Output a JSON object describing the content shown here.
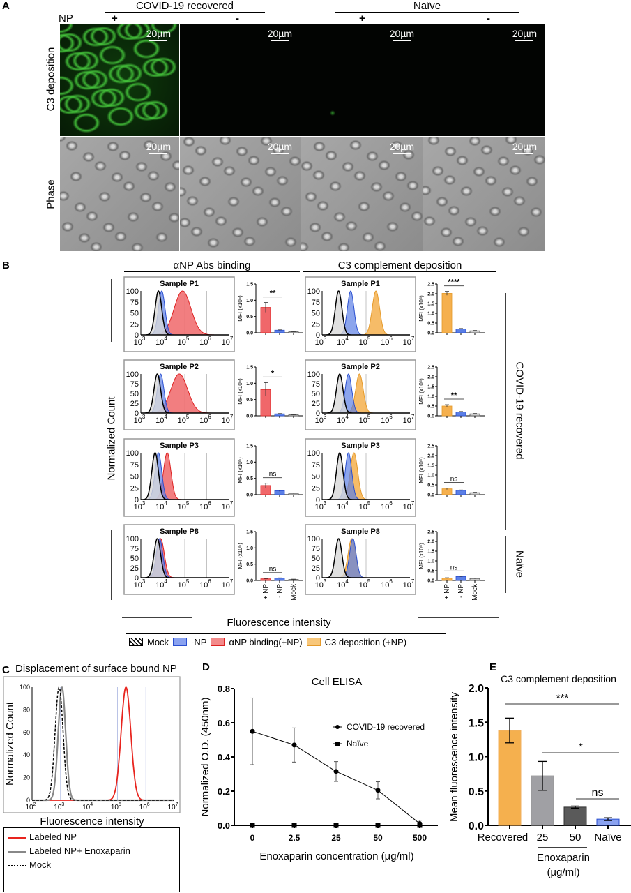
{
  "panel_a": {
    "label": "A",
    "group_headers": [
      "COVID-19 recovered",
      "Naïve"
    ],
    "np_label": "NP",
    "np_states": [
      "+",
      "-",
      "+",
      "-"
    ],
    "row_labels": [
      "C3 deposition",
      "Phase"
    ],
    "scale_bar": "20µm",
    "fluorescence_color": "#3fbf3a"
  },
  "panel_b": {
    "label": "B",
    "headers": [
      "αNP Abs binding",
      "C3 complement deposition"
    ],
    "y_label": "Normalized Count",
    "x_label": "Fluorescence intensity",
    "side_labels": [
      "COVID-19 recovered",
      "Naïve"
    ],
    "legend": [
      "Mock",
      "-NP",
      "αNP binding(+NP)",
      "C3 deposition (+NP)"
    ]
  },
  "panel_c": {
    "label": "C",
    "title": "Displacement of surface bound NP"
  },
  "panel_d": {
    "label": "D"
  },
  "panel_e": {
    "label": "E"
  },
  "colors": {
    "np_pos_binding": "#f0676a",
    "np_neg": "#5b7fe6",
    "c3_pos": "#f5b04e",
    "mock": "#d8d8d8",
    "labeled_np": "#e8241e",
    "enoxaparin": "#888888",
    "enox25": "#a0a0a4",
    "enox50": "#5a5a5a"
  },
  "chart_data": [
    {
      "type": "area",
      "group": "αNP Abs binding",
      "description_kind": "flow cytometry histograms",
      "x_scale": "log",
      "xlim_log10": [
        3,
        7
      ],
      "ylim": [
        0,
        100
      ],
      "x_tick_exponents": [
        "3",
        "4",
        "5",
        "6",
        "7"
      ],
      "x_tick_base": "10",
      "y_ticks": [
        "100",
        "75",
        "50",
        "25",
        "0"
      ],
      "samples": [
        {
          "title": "Sample P1",
          "peaks_log10": {
            "Mock": 3.8,
            "-NP": 3.95,
            "+NP": 4.9
          }
        },
        {
          "title": "Sample P2",
          "peaks_log10": {
            "Mock": 3.75,
            "-NP": 3.9,
            "+NP": 4.75
          }
        },
        {
          "title": "Sample P3",
          "peaks_log10": {
            "Mock": 3.65,
            "-NP": 3.8,
            "+NP": 4.2
          }
        },
        {
          "title": "Sample P8",
          "peaks_log10": {
            "Mock": 3.75,
            "-NP": 3.85,
            "+NP": 3.9
          }
        }
      ]
    },
    {
      "type": "area",
      "group": "C3 complement deposition",
      "x_scale": "log",
      "xlim_log10": [
        3,
        7
      ],
      "ylim": [
        0,
        100
      ],
      "x_tick_exponents": [
        "3",
        "4",
        "5",
        "6",
        "7"
      ],
      "x_tick_base": "10",
      "y_ticks": [
        "100",
        "75",
        "50",
        "25",
        "0"
      ],
      "samples": [
        {
          "title": "Sample P1",
          "peaks_log10": {
            "Mock": 3.75,
            "-NP": 4.3,
            "+NP": 5.45
          }
        },
        {
          "title": "Sample P2",
          "peaks_log10": {
            "Mock": 3.8,
            "-NP": 4.2,
            "+NP": 4.7
          }
        },
        {
          "title": "Sample P3",
          "peaks_log10": {
            "Mock": 3.8,
            "-NP": 4.2,
            "+NP": 4.45
          }
        },
        {
          "title": "Sample P8",
          "peaks_log10": {
            "Mock": 3.75,
            "-NP": 4.4,
            "+NP": 4.35
          }
        }
      ]
    },
    {
      "type": "bar",
      "group": "αNP Abs binding MFI",
      "ylabel": "MFI (x10⁵)",
      "categories": [
        "+ NP",
        "- NP",
        "Mock"
      ],
      "ylim": [
        0,
        1.5
      ],
      "y_ticks": [
        "1.5",
        "1.0",
        "0.5",
        "0.0"
      ],
      "samples": [
        {
          "values": [
            0.78,
            0.08,
            0.03
          ],
          "errors": [
            0.15,
            0.01,
            0.01
          ],
          "significance": "**"
        },
        {
          "values": [
            0.81,
            0.06,
            0.03
          ],
          "errors": [
            0.21,
            0.01,
            0.01
          ],
          "significance": "*"
        },
        {
          "values": [
            0.28,
            0.12,
            0.04
          ],
          "errors": [
            0.07,
            0.02,
            0.01
          ],
          "significance": "ns"
        },
        {
          "values": [
            0.05,
            0.07,
            0.03
          ],
          "errors": [
            0.01,
            0.01,
            0.01
          ],
          "significance": "ns"
        }
      ]
    },
    {
      "type": "bar",
      "group": "C3 complement deposition MFI",
      "ylabel": "MFI (x10⁵)",
      "categories": [
        "+ NP",
        "- NP",
        "Mock"
      ],
      "ylim": [
        0,
        2.5
      ],
      "y_ticks": [
        "2.5",
        "2.0",
        "1.5",
        "1.0",
        "0.5",
        "0.0"
      ],
      "samples": [
        {
          "values": [
            2.02,
            0.2,
            0.1
          ],
          "errors": [
            0.1,
            0.02,
            0.02
          ],
          "significance": "****"
        },
        {
          "values": [
            0.5,
            0.2,
            0.1
          ],
          "errors": [
            0.07,
            0.02,
            0.02
          ],
          "significance": "**"
        },
        {
          "values": [
            0.3,
            0.22,
            0.1
          ],
          "errors": [
            0.04,
            0.02,
            0.02
          ],
          "significance": "ns"
        },
        {
          "values": [
            0.12,
            0.2,
            0.1
          ],
          "errors": [
            0.02,
            0.02,
            0.02
          ],
          "significance": "ns"
        }
      ]
    },
    {
      "type": "line",
      "panel": "C",
      "title": "Displacement of surface bound NP",
      "xlabel": "Fluorescence intensity",
      "ylabel": "Normalized Count",
      "x_scale": "log",
      "xlim_log10": [
        2,
        7
      ],
      "ylim": [
        0,
        100
      ],
      "x_tick_exponents": [
        "2",
        "3",
        "4",
        "5",
        "6",
        "7"
      ],
      "x_tick_base": "10",
      "y_ticks": [
        "100",
        "80",
        "60",
        "40",
        "20",
        "0"
      ],
      "series": [
        {
          "name": "Labeled NP",
          "peak_log10": 5.3
        },
        {
          "name": "Labeled NP+ Enoxaparin",
          "peak_log10": 3.05
        },
        {
          "name": "Mock",
          "peak_log10": 2.95
        }
      ]
    },
    {
      "type": "line",
      "panel": "D",
      "title": "Cell ELISA",
      "xlabel": "Enoxaparin concentration (µg/ml)",
      "ylabel": "Normalized O.D. (450nm)",
      "categories": [
        "0",
        "2.5",
        "25",
        "50",
        "500"
      ],
      "ylim": [
        0,
        0.8
      ],
      "y_ticks": [
        "0.8",
        "0.6",
        "0.4",
        "0.2",
        "0.0"
      ],
      "series": [
        {
          "name": "COVID-19 recovered",
          "values": [
            0.55,
            0.47,
            0.315,
            0.205,
            0.01
          ],
          "errors": [
            0.195,
            0.1,
            0.058,
            0.05,
            0.02
          ]
        },
        {
          "name": "Naïve",
          "values": [
            0,
            0,
            0,
            0,
            0
          ]
        }
      ]
    },
    {
      "type": "bar",
      "panel": "E",
      "title": "C3 complement deposition",
      "ylabel": "Mean fluorescence intensity",
      "categories": [
        "Recovered",
        "25",
        "50",
        "Naïve"
      ],
      "group_label": "Enoxaparin",
      "group_unit": "(µg/ml)",
      "values": [
        1.38,
        0.72,
        0.265,
        0.09
      ],
      "errors": [
        0.18,
        0.21,
        0.015,
        0.02
      ],
      "ylim": [
        0,
        2.0
      ],
      "y_ticks": [
        "2.0",
        "1.5",
        "1.0",
        "0.5",
        "0.0"
      ],
      "significance": [
        {
          "from": "Recovered",
          "to": "Naïve",
          "label": "***"
        },
        {
          "from": "25",
          "to": "Naïve",
          "label": "*"
        },
        {
          "from": "50",
          "to": "Naïve",
          "label": "ns"
        }
      ]
    }
  ]
}
